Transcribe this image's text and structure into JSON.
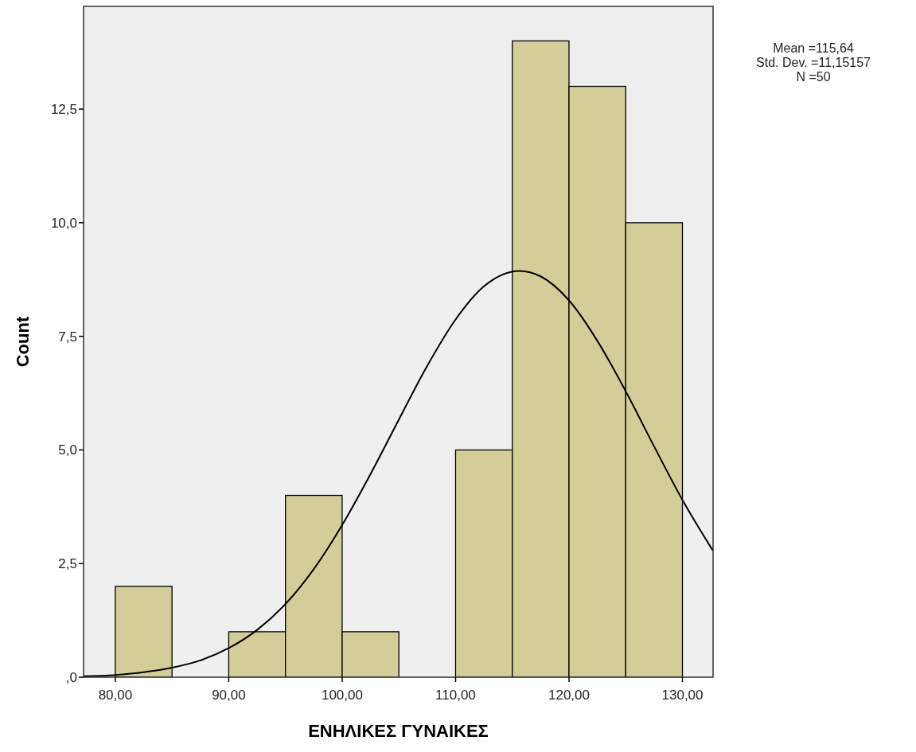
{
  "chart_data": {
    "type": "histogram",
    "xlabel": "ΕΝΗΛΙΚΕΣ ΓΥΝΑΙΚΕΣ",
    "ylabel": "Count",
    "annotations": [
      "Mean =115,64",
      "Std. Dev. =11,15157",
      "N =50"
    ],
    "xlim": [
      77.2,
      132.7
    ],
    "ylim": [
      0,
      14.76
    ],
    "xticks": [
      {
        "value": 80,
        "label": "80,00"
      },
      {
        "value": 90,
        "label": "90,00"
      },
      {
        "value": 100,
        "label": "100,00"
      },
      {
        "value": 110,
        "label": "110,00"
      },
      {
        "value": 120,
        "label": "120,00"
      },
      {
        "value": 130,
        "label": "130,00"
      }
    ],
    "yticks": [
      {
        "value": 0,
        "label": ",0"
      },
      {
        "value": 2.5,
        "label": "2,5"
      },
      {
        "value": 5,
        "label": "5,0"
      },
      {
        "value": 7.5,
        "label": "7,5"
      },
      {
        "value": 10,
        "label": "10,0"
      },
      {
        "value": 12.5,
        "label": "12,5"
      }
    ],
    "series": [
      {
        "color": "#d3ce97",
        "bins": [
          80,
          85,
          90,
          95,
          100,
          105,
          110,
          115,
          120,
          125,
          130
        ],
        "values": [
          2,
          0,
          1,
          4,
          1,
          0,
          5,
          14,
          13,
          10
        ]
      },
      {
        "type": "line",
        "color": "#000000",
        "x": [
          77.2,
          80,
          82.5,
          85,
          87.5,
          90,
          92.5,
          95,
          97.5,
          100,
          102.5,
          105,
          107.5,
          110,
          112.5,
          115.64,
          117.5,
          120,
          122.5,
          125,
          127.5,
          130,
          132.7
        ],
        "values": [
          0.02,
          0.05,
          0.11,
          0.21,
          0.37,
          0.64,
          1.04,
          1.61,
          2.38,
          3.35,
          4.47,
          5.67,
          6.85,
          7.87,
          8.6,
          8.94,
          8.82,
          8.29,
          7.4,
          6.29,
          5.08,
          3.9,
          2.78
        ]
      }
    ]
  }
}
